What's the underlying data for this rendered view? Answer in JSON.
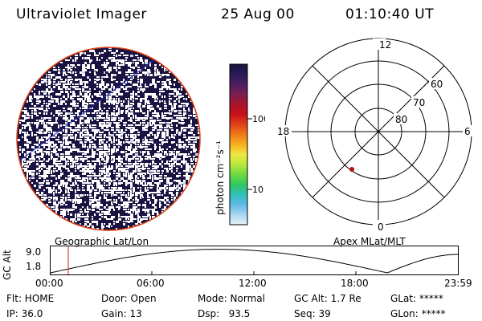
{
  "header": {
    "instrument": "Ultraviolet Imager",
    "date": "25 Aug 00",
    "time": "01:10:40 UT"
  },
  "colorbar": {
    "unit_label": "photon cm⁻²s⁻¹",
    "tick_labels": [
      "100",
      "10"
    ],
    "stops": [
      "#1a1240",
      "#2a1a55",
      "#4a1f62",
      "#7a1f50",
      "#a8142a",
      "#c8101a",
      "#e0401a",
      "#f07a18",
      "#f5b020",
      "#f0e840",
      "#b8e840",
      "#70d840",
      "#30c860",
      "#30c0b8",
      "#60b8e8",
      "#a8d8f0",
      "#e6f0f6"
    ]
  },
  "image_panel": {
    "label": "Geographic Lat/Lon",
    "outline_color": "#e04010"
  },
  "polar_panel": {
    "label": "Apex MLat/MLT",
    "mlt_labels": {
      "top": "12",
      "bottom": "0",
      "left": "18",
      "right": "6"
    },
    "lat_labels": [
      "60",
      "70",
      "80"
    ],
    "marker_color": "#b01010"
  },
  "altitude_plot": {
    "ylabel": "GC Alt",
    "y_ticks": [
      "9.0",
      "1.8"
    ],
    "x_ticks": [
      "00:00",
      "06:00",
      "12:00",
      "18:00",
      "23:59"
    ],
    "cursor_color": "#d02020"
  },
  "status": {
    "flt": "Flt: HOME",
    "ip": "IP: 36.0",
    "door": "Door: Open",
    "gain": "Gain: 13",
    "mode": "Mode: Normal",
    "dsp": "Dsp:   93.5",
    "gc_alt": "GC Alt: 1.7 Re",
    "seq": "Seq: 39",
    "glat": "GLat: *****",
    "glon": "GLon: *****"
  }
}
